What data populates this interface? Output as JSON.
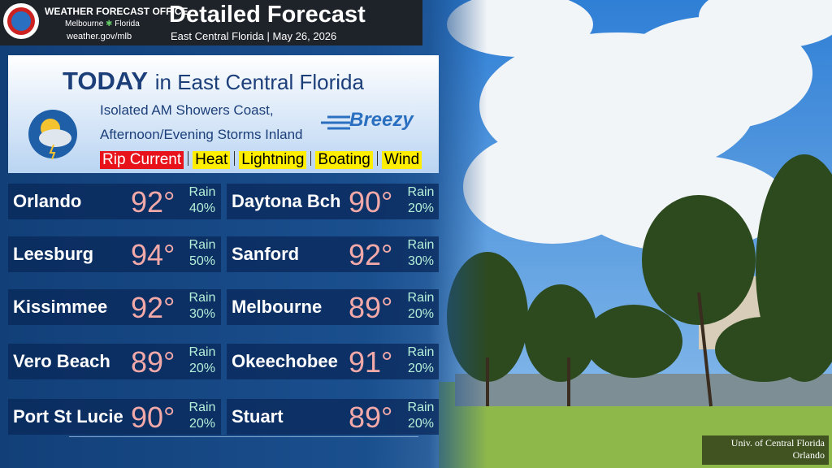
{
  "header": {
    "office": "WEATHER FORECAST OFFICE",
    "city": "Melbourne",
    "state": "Florida",
    "url": "weather.gov/mlb",
    "title": "Detailed Forecast",
    "subtitle": "East Central Florida | May 26, 2026"
  },
  "today": {
    "title_bold": "TODAY",
    "title_rest": "in East Central Florida",
    "forecast_line1": "Isolated AM Showers Coast,",
    "forecast_line2": "Afternoon/Evening Storms Inland",
    "wind": "Breezy",
    "hazards": [
      {
        "label": "Rip Current",
        "level": "red"
      },
      {
        "label": "Heat",
        "level": "yellow"
      },
      {
        "label": "Lightning",
        "level": "yellow"
      },
      {
        "label": "Boating",
        "level": "yellow"
      },
      {
        "label": "Wind",
        "level": "yellow"
      }
    ]
  },
  "cities": [
    {
      "name": "Orlando",
      "temp": "92°",
      "rain_label": "Rain",
      "rain": "40%"
    },
    {
      "name": "Daytona Bch",
      "temp": "90°",
      "rain_label": "Rain",
      "rain": "20%"
    },
    {
      "name": "Leesburg",
      "temp": "94°",
      "rain_label": "Rain",
      "rain": "50%"
    },
    {
      "name": "Sanford",
      "temp": "92°",
      "rain_label": "Rain",
      "rain": "30%"
    },
    {
      "name": "Kissimmee",
      "temp": "92°",
      "rain_label": "Rain",
      "rain": "30%"
    },
    {
      "name": "Melbourne",
      "temp": "89°",
      "rain_label": "Rain",
      "rain": "20%"
    },
    {
      "name": "Vero Beach",
      "temp": "89°",
      "rain_label": "Rain",
      "rain": "20%"
    },
    {
      "name": "Okeechobee",
      "temp": "91°",
      "rain_label": "Rain",
      "rain": "20%"
    },
    {
      "name": "Port St Lucie",
      "temp": "90°",
      "rain_label": "Rain",
      "rain": "20%"
    },
    {
      "name": "Stuart",
      "temp": "89°",
      "rain_label": "Rain",
      "rain": "20%"
    }
  ],
  "credit": {
    "line1": "Univ. of Central Florida",
    "line2": "Orlando"
  }
}
